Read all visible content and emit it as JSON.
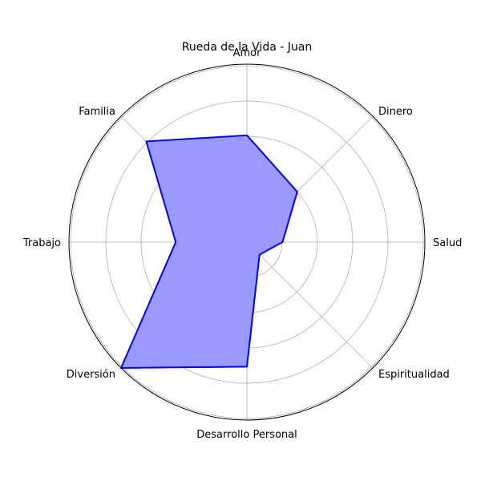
{
  "chart_data": {
    "type": "radar",
    "title": "Rueda de la Vida - Juan",
    "categories": [
      "Salud",
      "Dinero",
      "Amor",
      "Familia",
      "Trabajo",
      "Diversión",
      "Desarrollo Personal",
      "Espiritualidad"
    ],
    "series": [
      {
        "values": [
          2,
          4,
          6,
          8,
          4,
          10,
          7,
          1
        ]
      }
    ],
    "rlim": [
      0,
      10
    ],
    "grid": true,
    "colors": {
      "line": "#0000ee",
      "fill": "#9999ff",
      "grid": "#b0b0b0",
      "frame": "#000000"
    }
  }
}
